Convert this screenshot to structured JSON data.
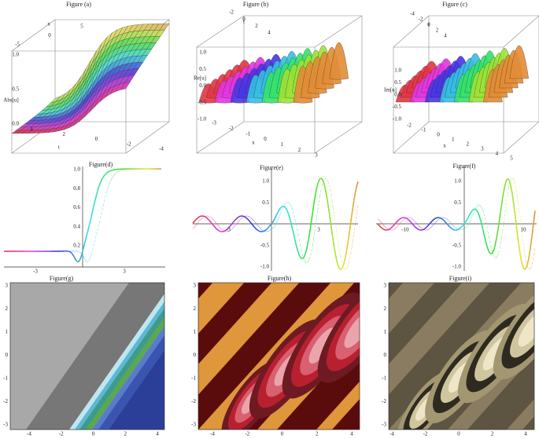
{
  "panels": [
    {
      "title": "Figure (a)",
      "labels": [
        "x",
        "Abs[u]",
        "t"
      ],
      "ticks": [
        [
          "-5",
          "0",
          "5"
        ],
        [
          "1.0",
          "0.5",
          "0.0"
        ],
        [
          "4",
          "2",
          "0",
          "-2",
          "-4"
        ]
      ]
    },
    {
      "title": "Figure (b)",
      "labels": [
        "t",
        "Re[u]",
        "x"
      ],
      "ticks": [
        [
          "-2",
          "0",
          "2",
          "4"
        ],
        [
          "1.0",
          "0.5",
          "0.0",
          "-0.5",
          "-1.0"
        ],
        [
          "-3",
          "-2",
          "-1",
          "0",
          "1",
          "2",
          "3"
        ]
      ]
    },
    {
      "title": "Figure (c)",
      "labels": [
        "t",
        "Im[u]",
        "x"
      ],
      "ticks": [
        [
          "-4",
          "-2",
          "0",
          "2",
          "4"
        ],
        [
          "1.0",
          "0.5",
          "0.0",
          "-0.5",
          "-1.0"
        ],
        [
          "-2",
          "-1",
          "0",
          "1",
          "2",
          "3",
          "4",
          "5"
        ]
      ]
    },
    {
      "title": "Figure(d)",
      "labels": [],
      "ticks": [
        [
          "1.0",
          "0.8",
          "0.6",
          "0.4",
          "0.2"
        ],
        [
          "-3",
          "3"
        ]
      ]
    },
    {
      "title": "Figure(e)",
      "labels": [],
      "ticks": [
        [
          "1.0",
          "0.5",
          "-0.5",
          "-1.0"
        ],
        [
          "-3",
          "3"
        ]
      ]
    },
    {
      "title": "Figure(f)",
      "labels": [],
      "ticks": [
        [
          "1.0",
          "0.5",
          "-0.5",
          "-1.0"
        ],
        [
          "-10",
          "10"
        ]
      ]
    },
    {
      "title": "Figure(g)",
      "labels": [],
      "ticks": [
        [
          "3",
          "2",
          "1",
          "0",
          "-1",
          "-2",
          "-3"
        ],
        [
          "-4",
          "-2",
          "0",
          "2",
          "4"
        ]
      ]
    },
    {
      "title": "Figure(h)",
      "labels": [],
      "ticks": [
        [
          "3",
          "2",
          "1",
          "0",
          "-1",
          "-2",
          "-3"
        ],
        [
          "-4",
          "-2",
          "0",
          "2",
          "4"
        ]
      ]
    },
    {
      "title": "Figure(i)",
      "labels": [],
      "ticks": [
        [
          "3",
          "2",
          "1",
          "0",
          "-1",
          "-2",
          "-3"
        ],
        [
          "-4",
          "-2",
          "0",
          "2",
          "4"
        ]
      ]
    }
  ]
}
